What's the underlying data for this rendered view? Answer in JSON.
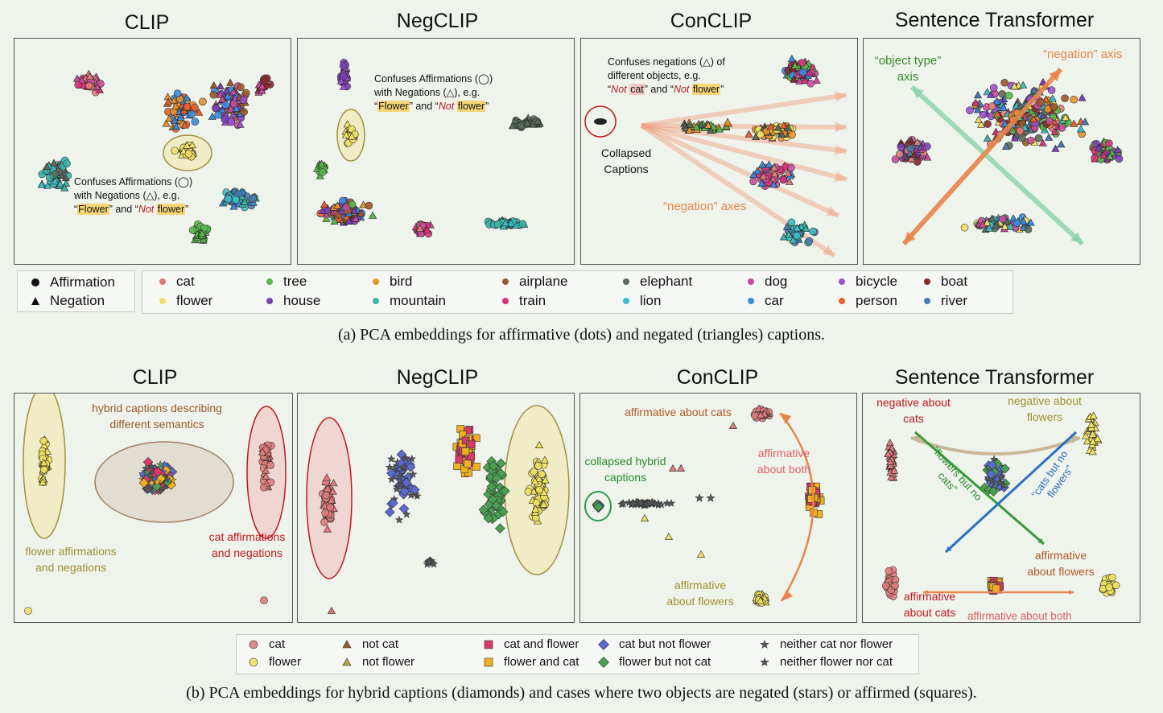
{
  "row_a": {
    "panels": [
      "CLIP",
      "NegCLIP",
      "ConCLIP",
      "Sentence Transformer"
    ],
    "caption": "(a) PCA embeddings for affirmative (dots) and negated (triangles) captions.",
    "annotations": {
      "clip_1": "Confuses Affirmations (◯)",
      "clip_2": "with Negations (△), e.g.",
      "clip_3a": "“",
      "clip_3b": "Flower",
      "clip_3c": "” and “",
      "clip_3d": "Not",
      "clip_3e": "flower",
      "clip_3f": "”",
      "neg_1": "Confuses Affirmations (◯)",
      "neg_2": "with Negations (△), e.g.",
      "neg_3b": "Flower",
      "neg_3d": "Not",
      "neg_3e": "flower",
      "con_1": "Confuses negations (△) of",
      "con_2": "different objects, e.g.",
      "con_3b": "Not",
      "con_3c": "cat",
      "con_3d": "Not",
      "con_3e": "flower",
      "collapsed": "Collapsed Captions",
      "negation_axes": "“negation” axes",
      "object_type_axis": "“object type” axis",
      "negation_axis": "“negation” axis"
    },
    "legend_markers": [
      "Affirmation",
      "Negation"
    ],
    "legend_objects": [
      "cat",
      "flower",
      "tree",
      "house",
      "bird",
      "mountain",
      "airplane",
      "train",
      "elephant",
      "lion",
      "dog",
      "car",
      "bicycle",
      "person",
      "boat",
      "river"
    ]
  },
  "row_b": {
    "panels": [
      "CLIP",
      "NegCLIP",
      "ConCLIP",
      "Sentence Transformer"
    ],
    "caption": "(b) PCA embeddings for hybrid captions (diamonds) and cases where two objects are negated (stars) or affirmed (squares).",
    "annotations": {
      "hybrid": "hybrid captions describing different semantics",
      "flower_aff_neg": "flower affirmations and negations",
      "cat_aff_neg": "cat affirmations and negations",
      "aff_cats": "affirmative about cats",
      "collapsed_hybrid": "collapsed hybrid captions",
      "aff_both": "affirmative about both",
      "aff_flowers": "affirmative about flowers",
      "neg_cats": "negative about cats",
      "neg_flowers": "negative about flowers",
      "flowers_no_cats": "“flowers but no cats”",
      "cats_no_flowers": "“cats but no flowers”",
      "st_aff_flowers": "affirmative about flowers",
      "st_aff_cats": "affirmative about cats",
      "st_aff_both": "affirmative about both"
    },
    "legend": [
      "cat",
      "flower",
      "not cat",
      "not flower",
      "cat and flower",
      "flower and cat",
      "cat but not flower",
      "flower but not cat",
      "neither cat nor flower",
      "neither flower nor cat"
    ]
  },
  "colors": {
    "cat": "#e07b7b",
    "flower": "#f0e060",
    "tree": "#58b84a",
    "house": "#7b3fb8",
    "bird": "#e8922a",
    "mountain": "#3ab5a8",
    "airplane": "#9a5a2a",
    "train": "#d8327a",
    "elephant": "#5a6a5a",
    "lion": "#38c0c8",
    "dog": "#c84a9a",
    "car": "#3a8ae0",
    "bicycle": "#a050d0",
    "person": "#e86030",
    "boat": "#8a2a2a",
    "river": "#4a7ab0",
    "hybrid_cat_not_flower": "#5a6ad0",
    "hybrid_flower_not_cat": "#4aa050",
    "star": "#555555",
    "square_a": "#d83a6a",
    "square_b": "#f0b020"
  },
  "chart_data": [
    {
      "type": "scatter",
      "title": "CLIP",
      "series": [
        {
          "name": "cat",
          "cluster_center": [
            0.25,
            0.2
          ]
        },
        {
          "name": "flower",
          "cluster_center": [
            0.6,
            0.45
          ]
        },
        {
          "name": "tree",
          "cluster_center": [
            0.68,
            0.82
          ]
        },
        {
          "name": "bird",
          "cluster_center": [
            0.55,
            0.3
          ]
        },
        {
          "name": "elephant",
          "cluster_center": [
            0.15,
            0.6
          ]
        },
        {
          "name": "river",
          "cluster_center": [
            0.85,
            0.6
          ]
        }
      ]
    },
    {
      "type": "scatter",
      "title": "NegCLIP"
    },
    {
      "type": "scatter",
      "title": "ConCLIP"
    },
    {
      "type": "scatter",
      "title": "Sentence Transformer"
    }
  ]
}
